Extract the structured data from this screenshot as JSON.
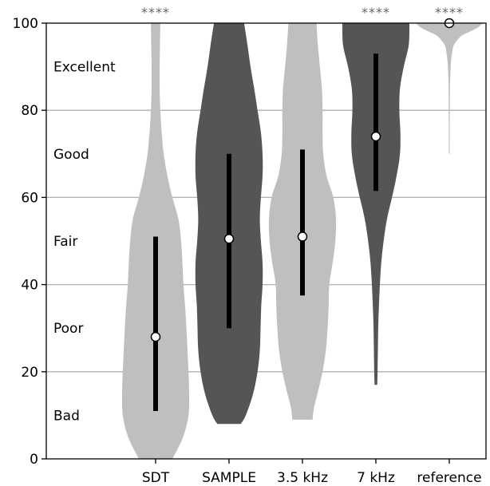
{
  "chart_data": {
    "type": "violin",
    "categories": [
      "SDT",
      "SAMPLE",
      "3.5 kHz",
      "7 kHz",
      "reference"
    ],
    "ylim": [
      0,
      100
    ],
    "yticks": [
      0,
      20,
      40,
      60,
      80,
      100
    ],
    "grid": {
      "y": true,
      "at": [
        20,
        40,
        60,
        80
      ]
    },
    "quality_labels": [
      {
        "text": "Excellent",
        "value": 90
      },
      {
        "text": "Good",
        "value": 70
      },
      {
        "text": "Fair",
        "value": 50
      },
      {
        "text": "Poor",
        "value": 30
      },
      {
        "text": "Bad",
        "value": 10
      }
    ],
    "series": [
      {
        "category": "SDT",
        "fill": "#bfbfbf",
        "median": 28,
        "iqr": [
          11,
          51
        ],
        "significance": "****",
        "density": [
          [
            0,
            0.5
          ],
          [
            5,
            0.82
          ],
          [
            10,
            0.98
          ],
          [
            15,
            1.0
          ],
          [
            20,
            0.98
          ],
          [
            25,
            0.95
          ],
          [
            30,
            0.92
          ],
          [
            35,
            0.88
          ],
          [
            40,
            0.83
          ],
          [
            45,
            0.8
          ],
          [
            50,
            0.76
          ],
          [
            55,
            0.68
          ],
          [
            60,
            0.5
          ],
          [
            65,
            0.35
          ],
          [
            70,
            0.24
          ],
          [
            75,
            0.18
          ],
          [
            80,
            0.14
          ],
          [
            85,
            0.12
          ],
          [
            90,
            0.12
          ],
          [
            95,
            0.13
          ],
          [
            100,
            0.14
          ]
        ]
      },
      {
        "category": "SAMPLE",
        "fill": "#555555",
        "median": 50.5,
        "iqr": [
          30,
          70
        ],
        "significance": "",
        "density": [
          [
            8,
            0.35
          ],
          [
            10,
            0.5
          ],
          [
            15,
            0.72
          ],
          [
            20,
            0.85
          ],
          [
            25,
            0.92
          ],
          [
            30,
            0.94
          ],
          [
            35,
            0.96
          ],
          [
            40,
            1.0
          ],
          [
            45,
            1.0
          ],
          [
            50,
            0.95
          ],
          [
            55,
            0.92
          ],
          [
            60,
            0.95
          ],
          [
            65,
            1.0
          ],
          [
            70,
            1.0
          ],
          [
            75,
            0.95
          ],
          [
            80,
            0.85
          ],
          [
            85,
            0.75
          ],
          [
            90,
            0.64
          ],
          [
            95,
            0.55
          ],
          [
            100,
            0.45
          ]
        ]
      },
      {
        "category": "3.5 kHz",
        "fill": "#bfbfbf",
        "median": 51,
        "iqr": [
          37.5,
          71
        ],
        "significance": "",
        "density": [
          [
            9,
            0.3
          ],
          [
            12,
            0.35
          ],
          [
            15,
            0.45
          ],
          [
            20,
            0.6
          ],
          [
            25,
            0.7
          ],
          [
            30,
            0.75
          ],
          [
            35,
            0.78
          ],
          [
            40,
            0.8
          ],
          [
            45,
            0.9
          ],
          [
            50,
            0.98
          ],
          [
            55,
            1.0
          ],
          [
            60,
            0.92
          ],
          [
            65,
            0.72
          ],
          [
            70,
            0.62
          ],
          [
            75,
            0.6
          ],
          [
            80,
            0.6
          ],
          [
            85,
            0.58
          ],
          [
            90,
            0.52
          ],
          [
            95,
            0.46
          ],
          [
            100,
            0.42
          ]
        ]
      },
      {
        "category": "7 kHz",
        "fill": "#555555",
        "median": 74,
        "iqr": [
          61.5,
          93
        ],
        "significance": "****",
        "density": [
          [
            17,
            0.04
          ],
          [
            20,
            0.05
          ],
          [
            25,
            0.06
          ],
          [
            30,
            0.07
          ],
          [
            35,
            0.09
          ],
          [
            40,
            0.12
          ],
          [
            45,
            0.16
          ],
          [
            50,
            0.23
          ],
          [
            55,
            0.33
          ],
          [
            60,
            0.48
          ],
          [
            65,
            0.62
          ],
          [
            70,
            0.72
          ],
          [
            75,
            0.73
          ],
          [
            80,
            0.7
          ],
          [
            85,
            0.72
          ],
          [
            90,
            0.83
          ],
          [
            95,
            0.98
          ],
          [
            100,
            1.0
          ]
        ]
      },
      {
        "category": "reference",
        "fill": "#bfbfbf",
        "median": 100,
        "iqr": [
          100,
          100
        ],
        "significance": "****",
        "density": [
          [
            70,
            0.012
          ],
          [
            75,
            0.014
          ],
          [
            80,
            0.016
          ],
          [
            85,
            0.02
          ],
          [
            88,
            0.03
          ],
          [
            91,
            0.05
          ],
          [
            93,
            0.08
          ],
          [
            95,
            0.14
          ],
          [
            97,
            0.35
          ],
          [
            98,
            0.6
          ],
          [
            99,
            0.85
          ],
          [
            100,
            1.0
          ]
        ]
      }
    ]
  }
}
